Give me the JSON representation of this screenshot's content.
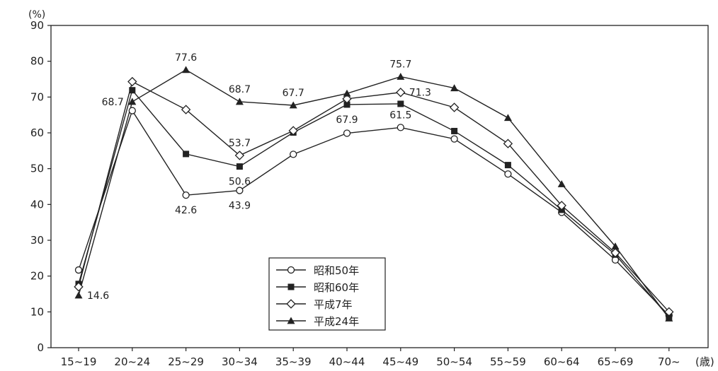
{
  "chart_data": {
    "type": "line",
    "y_unit": "(%)",
    "x_unit": "(歳)",
    "ylim": [
      0,
      90
    ],
    "yticks": [
      0,
      10,
      20,
      30,
      40,
      50,
      60,
      70,
      80,
      90
    ],
    "grid": false,
    "legend_position": "bottom-center",
    "categories": [
      "15~19",
      "20~24",
      "25~29",
      "30~34",
      "35~39",
      "40~44",
      "45~49",
      "50~54",
      "55~59",
      "60~64",
      "65~69",
      "70~"
    ],
    "series": [
      {
        "name": "昭和50年",
        "marker": "circle-open",
        "values": [
          21.7,
          66.2,
          42.6,
          43.9,
          54.0,
          59.9,
          61.5,
          58.3,
          48.5,
          37.8,
          24.5,
          9.0
        ]
      },
      {
        "name": "昭和60年",
        "marker": "square-filled",
        "values": [
          17.8,
          71.9,
          54.1,
          50.6,
          60.1,
          67.9,
          68.1,
          60.5,
          51.0,
          38.5,
          26.0,
          8.5
        ]
      },
      {
        "name": "平成7年",
        "marker": "diamond-open",
        "values": [
          17.0,
          74.3,
          66.5,
          53.7,
          60.6,
          69.5,
          71.3,
          67.1,
          57.0,
          39.7,
          26.5,
          10.0
        ]
      },
      {
        "name": "平成24年",
        "marker": "triangle-filled",
        "values": [
          14.6,
          68.7,
          77.6,
          68.7,
          67.7,
          71.0,
          75.7,
          72.5,
          64.2,
          45.7,
          28.3,
          8.2
        ]
      }
    ],
    "annotations": [
      {
        "text": "77.6",
        "series": 3,
        "index": 2,
        "anchor": "above"
      },
      {
        "text": "68.7",
        "series": 3,
        "index": 3,
        "anchor": "above"
      },
      {
        "text": "67.7",
        "series": 3,
        "index": 4,
        "anchor": "above"
      },
      {
        "text": "75.7",
        "series": 3,
        "index": 6,
        "anchor": "above"
      },
      {
        "text": "68.7",
        "series": 3,
        "index": 1,
        "anchor": "left"
      },
      {
        "text": "14.6",
        "series": 3,
        "index": 0,
        "anchor": "right"
      },
      {
        "text": "71.3",
        "series": 2,
        "index": 6,
        "anchor": "right"
      },
      {
        "text": "53.7",
        "series": 2,
        "index": 3,
        "anchor": "above"
      },
      {
        "text": "50.6",
        "series": 1,
        "index": 3,
        "anchor": "below"
      },
      {
        "text": "67.9",
        "series": 1,
        "index": 5,
        "anchor": "below"
      },
      {
        "text": "61.5",
        "series": 0,
        "index": 6,
        "anchor": "above"
      },
      {
        "text": "42.6",
        "series": 0,
        "index": 2,
        "anchor": "below"
      },
      {
        "text": "43.9",
        "series": 0,
        "index": 3,
        "anchor": "below"
      }
    ]
  }
}
